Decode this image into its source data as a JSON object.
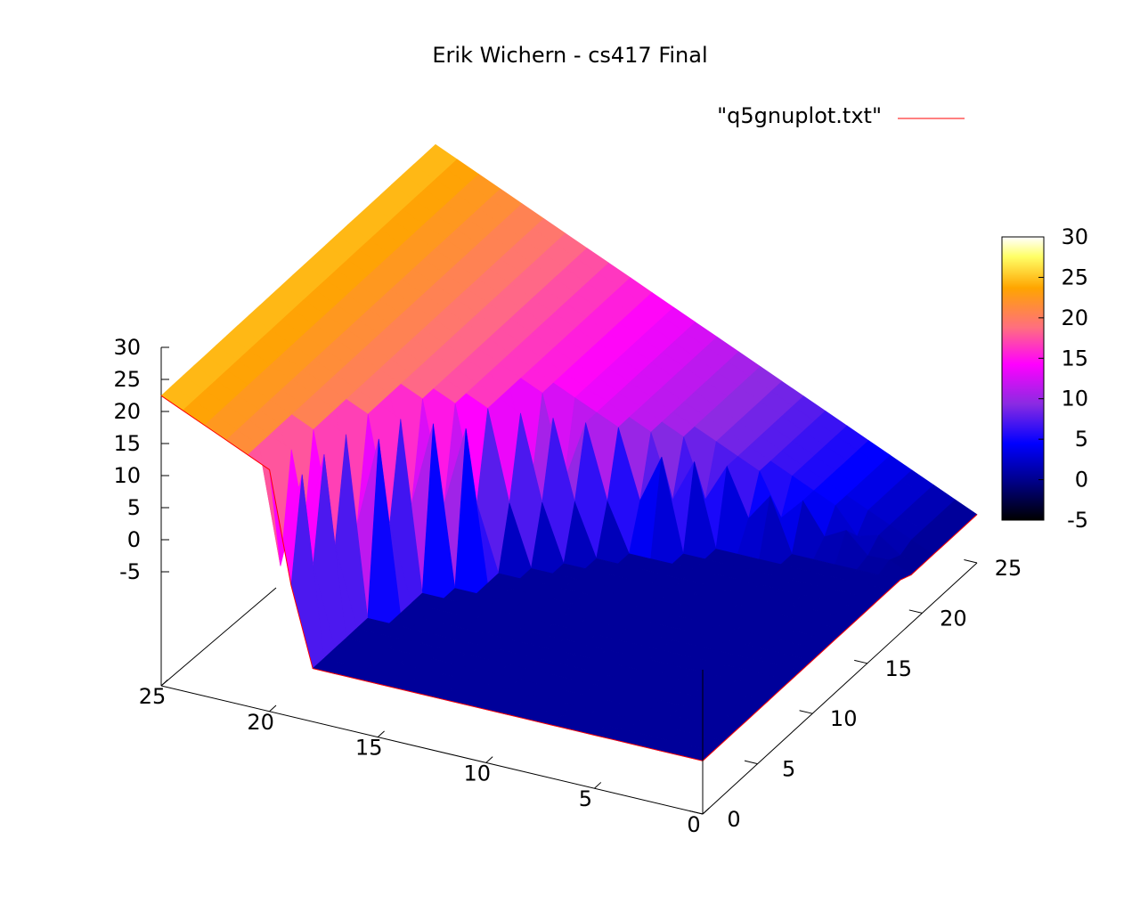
{
  "chart_data": {
    "type": "surface3d",
    "title": "Erik Wichern - cs417 Final",
    "legend": {
      "entry": "\"q5gnuplot.txt\"",
      "line_color": "#ff0000",
      "placement": "top-right"
    },
    "xlim": [
      0,
      25
    ],
    "ylim": [
      0,
      25
    ],
    "zlim": [
      -5,
      30
    ],
    "x_ticks": [
      "0",
      "5",
      "10",
      "15",
      "20",
      "25"
    ],
    "y_ticks": [
      "0",
      "5",
      "10",
      "15",
      "20",
      "25"
    ],
    "z_ticks": [
      "-5",
      "0",
      "5",
      "10",
      "15",
      "20",
      "25",
      "30"
    ],
    "colorbar": {
      "ticks": [
        "-5",
        "0",
        "5",
        "10",
        "15",
        "20",
        "25",
        "30"
      ],
      "range": [
        -5,
        30
      ],
      "palette": [
        "#000000",
        "#00008b",
        "#0000ff",
        "#8a2be2",
        "#ff00ff",
        "#ff6f7f",
        "#ffa500",
        "#ffff66",
        "#ffffff"
      ]
    },
    "surface": {
      "grid_step": 1,
      "description_of_shape": "z ≈ x for cells outside a quarter circle of radius ~20 from the origin; spikes near the boundary; near zero inside",
      "boundary_radius": 20,
      "outside_slope": 1.0
    }
  }
}
